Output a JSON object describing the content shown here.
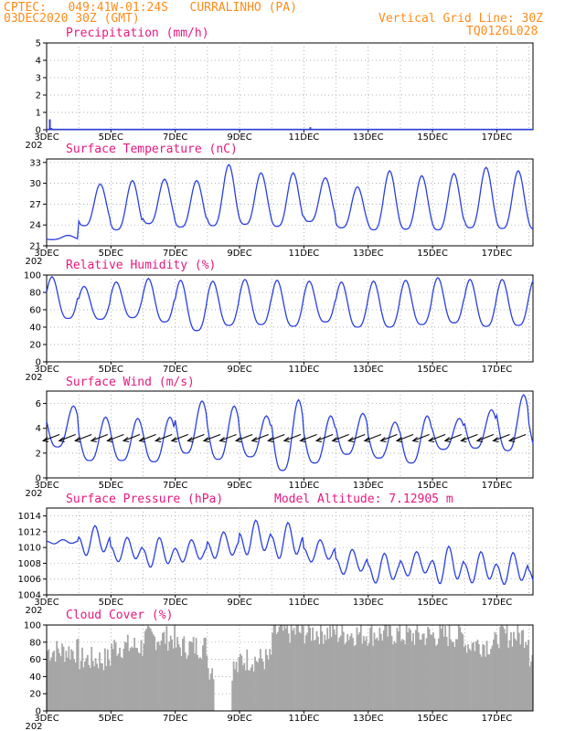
{
  "header": {
    "line1": "CPTEC:   049:41W-01:24S   CURRALINHO (PA)",
    "line2": "03DEC2020 30Z (GMT)",
    "right1": "Vertical Grid Line: 30Z",
    "right2": "TQ0126L028"
  },
  "x_tick_labels": [
    "3DEC",
    "5DEC",
    "7DEC",
    "9DEC",
    "11DEC",
    "13DEC",
    "15DEC",
    "17DEC"
  ],
  "year_fragment": "202",
  "colors": {
    "header": "#ff8c1a",
    "title": "#e6197f",
    "line": "#2b3fe0",
    "cloud": "#a6a6a6",
    "grid": "#999999"
  },
  "chart_data": [
    {
      "type": "bar",
      "title": "Precipitation (mm/h)",
      "ylim": [
        0,
        5
      ],
      "yticks": [
        0,
        1,
        2,
        3,
        4,
        5
      ],
      "x_range_days": [
        3.0,
        18.125
      ],
      "values_x_day": [
        3.1,
        3.15,
        11.2
      ],
      "values": [
        0.6,
        0.1,
        0.15
      ],
      "grid": true
    },
    {
      "type": "line",
      "title": "Surface Temperature (nC)",
      "ylim": [
        21,
        33.5
      ],
      "yticks": [
        21,
        24,
        27,
        30,
        33
      ],
      "diurnal_max": [
        22.5,
        29.9,
        30.4,
        30.6,
        30.4,
        32.7,
        31.5,
        31.5,
        30.8,
        29.5,
        31.8,
        31.1,
        31.4,
        32.3,
        31.8,
        31.9
      ],
      "diurnal_min": [
        21.9,
        23.9,
        23.3,
        24.2,
        23.7,
        23.9,
        24.1,
        23.8,
        24.5,
        23.6,
        23.3,
        23.4,
        23.3,
        23.6,
        23.5,
        23.4
      ],
      "grid": true
    },
    {
      "type": "line",
      "title": "Relative Humidity (%)",
      "ylim": [
        0,
        100
      ],
      "yticks": [
        0,
        20,
        40,
        60,
        80,
        100
      ],
      "diurnal_max": [
        98,
        87,
        92,
        96,
        94,
        93,
        95,
        94,
        93,
        92,
        93,
        94,
        97,
        95,
        95,
        95
      ],
      "diurnal_min": [
        50,
        49,
        51,
        46,
        36,
        42,
        43,
        41,
        46,
        40,
        40,
        43,
        45,
        41,
        42,
        43
      ],
      "grid": true
    },
    {
      "type": "line",
      "title": "Surface Wind (m/s)",
      "ylim": [
        0,
        7
      ],
      "yticks": [
        0,
        2,
        4,
        6
      ],
      "diurnal_max": [
        5.8,
        4.9,
        4.8,
        4.9,
        6.2,
        5.8,
        5.0,
        6.3,
        5.0,
        5.2,
        4.5,
        5.0,
        4.8,
        5.5,
        6.7,
        5.7
      ],
      "diurnal_min": [
        2.5,
        1.4,
        1.4,
        1.3,
        2.0,
        1.5,
        1.7,
        0.6,
        1.2,
        1.9,
        1.6,
        1.2,
        2.3,
        2.4,
        2.2,
        2.0
      ],
      "wind_vectors": "barbs along y=3.5, pointing south-west",
      "grid": true
    },
    {
      "type": "line",
      "title": "Surface Pressure (hPa)",
      "annotation": "Model Altitude: 7.12905 m",
      "ylim": [
        1004,
        1015
      ],
      "yticks": [
        1004,
        1006,
        1008,
        1010,
        1012,
        1014
      ],
      "diurnal_max": [
        1011.0,
        1012.8,
        1011.3,
        1011.3,
        1011.0,
        1012.0,
        1013.5,
        1013.2,
        1011.0,
        1009.8,
        1009.3,
        1009.5,
        1010.2,
        1009.5,
        1009.4,
        1008.5
      ],
      "diurnal_min": [
        1010.4,
        1008.5,
        1007.8,
        1007.0,
        1007.8,
        1008.2,
        1008.5,
        1008.0,
        1007.8,
        1006.2,
        1005.0,
        1006.0,
        1004.8,
        1005.0,
        1004.8,
        1004.4
      ],
      "grid": true
    },
    {
      "type": "area",
      "title": "Cloud Cover (%)",
      "ylim": [
        0,
        100
      ],
      "yticks": [
        0,
        20,
        40,
        60,
        80,
        100
      ],
      "daily_profile": [
        70,
        60,
        75,
        85,
        75,
        50,
        60,
        92,
        92,
        90,
        90,
        88,
        88,
        78,
        88,
        65
      ],
      "grid": true
    }
  ]
}
